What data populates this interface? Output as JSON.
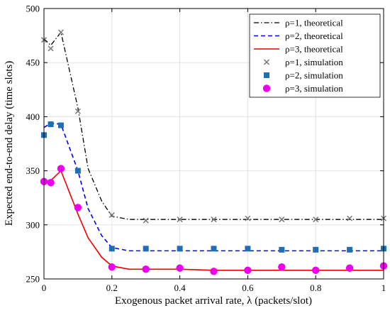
{
  "chart_data": {
    "type": "line",
    "xlabel": "Exogenous packet arrival rate, λ (packets/slot)",
    "ylabel": "Expected end-to-end delay (time slots)",
    "xlim": [
      0,
      1
    ],
    "ylim": [
      250,
      500
    ],
    "xticks": [
      0,
      0.2,
      0.4,
      0.6,
      0.8,
      1
    ],
    "xtick_labels": [
      "0",
      "0.2",
      "0.4",
      "0.6",
      "0.8",
      "1"
    ],
    "yticks": [
      250,
      300,
      350,
      400,
      450,
      500
    ],
    "ytick_labels": [
      "250",
      "300",
      "350",
      "400",
      "450",
      "500"
    ],
    "grid": true,
    "legend_position": "top-right",
    "series": [
      {
        "name": "ρ=1, theoretical",
        "style": "dashdot",
        "color": "#000000",
        "x": [
          0,
          0.02,
          0.05,
          0.1,
          0.13,
          0.17,
          0.2,
          0.25,
          0.3,
          0.4,
          0.5,
          0.6,
          0.7,
          0.8,
          0.9,
          1.0
        ],
        "y": [
          472,
          466,
          478,
          408,
          352,
          322,
          308,
          305,
          305,
          305,
          305,
          305,
          305,
          305,
          305,
          305
        ]
      },
      {
        "name": "ρ=2, theoretical",
        "style": "dashed",
        "color": "#0000ee",
        "x": [
          0,
          0.02,
          0.05,
          0.1,
          0.13,
          0.17,
          0.2,
          0.25,
          0.3,
          0.4,
          0.5,
          0.6,
          0.7,
          0.8,
          0.9,
          1.0
        ],
        "y": [
          390,
          394,
          393,
          350,
          315,
          290,
          279,
          276,
          276,
          276,
          276,
          276,
          276,
          276,
          276,
          276
        ]
      },
      {
        "name": "ρ=3, theoretical",
        "style": "solid",
        "color": "#ee0000",
        "x": [
          0,
          0.02,
          0.05,
          0.1,
          0.13,
          0.17,
          0.2,
          0.25,
          0.3,
          0.4,
          0.5,
          0.6,
          0.7,
          0.8,
          0.9,
          1.0
        ],
        "y": [
          340,
          341,
          350,
          310,
          288,
          270,
          262,
          259,
          259,
          259,
          258,
          258,
          258,
          258,
          258,
          258
        ]
      },
      {
        "name": "ρ=1, simulation",
        "marker": "x",
        "color": "#777777",
        "x": [
          0,
          0.02,
          0.05,
          0.1,
          0.2,
          0.3,
          0.4,
          0.5,
          0.6,
          0.7,
          0.8,
          0.9,
          1.0
        ],
        "y": [
          471,
          463,
          478,
          405,
          309,
          304,
          305,
          305,
          306,
          305,
          305,
          306,
          306
        ]
      },
      {
        "name": "ρ=2, simulation",
        "marker": "square",
        "color": "#1f6fb5",
        "x": [
          0,
          0.02,
          0.05,
          0.1,
          0.2,
          0.3,
          0.4,
          0.5,
          0.6,
          0.7,
          0.8,
          0.9,
          1.0
        ],
        "y": [
          383,
          393,
          392,
          350,
          278,
          278,
          278,
          278,
          278,
          277,
          277,
          277,
          278
        ]
      },
      {
        "name": "ρ=3, simulation",
        "marker": "circle",
        "color": "#ee00ee",
        "x": [
          0,
          0.02,
          0.05,
          0.1,
          0.2,
          0.3,
          0.4,
          0.5,
          0.6,
          0.7,
          0.8,
          0.9,
          1.0
        ],
        "y": [
          340,
          339,
          352,
          316,
          261,
          259,
          260,
          257,
          258,
          261,
          258,
          260,
          262
        ]
      }
    ]
  }
}
